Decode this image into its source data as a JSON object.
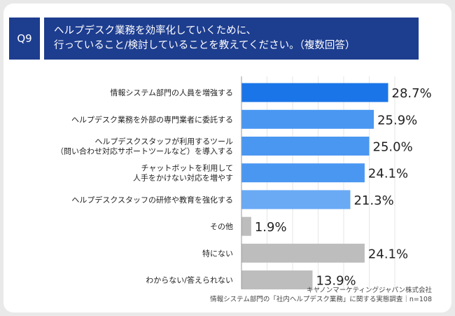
{
  "question": {
    "number": "Q9",
    "title_line1": "ヘルプデスク業務を効率化していくために、",
    "title_line2": "行っていること/検討していることを教えてください。（複数回答）"
  },
  "chart_data": {
    "type": "bar",
    "orientation": "horizontal",
    "categories": [
      [
        "情報システム部門の人員を増強する"
      ],
      [
        "ヘルプデスク業務を外部の専門業者に委託する"
      ],
      [
        "ヘルプデスクスタッフが利用するツール",
        "（問い合わせ対応サポートツールなど）を導入する"
      ],
      [
        "チャットボットを利用して",
        "人手をかけない対応を増やす"
      ],
      [
        "ヘルプデスクスタッフの研修や教育を強化する"
      ],
      [
        "その他"
      ],
      [
        "特にない"
      ],
      [
        "わからない/答えられない"
      ]
    ],
    "values": [
      28.7,
      25.9,
      25.0,
      24.1,
      21.3,
      1.9,
      24.1,
      13.9
    ],
    "value_labels": [
      "28.7%",
      "25.9%",
      "25.0%",
      "24.1%",
      "21.3%",
      "1.9%",
      "24.1%",
      "13.9%"
    ],
    "colors": [
      "#1a75e8",
      "#4a97f2",
      "#4a97f2",
      "#4a97f2",
      "#6aaaf5",
      "#bdbdbd",
      "#bdbdbd",
      "#bdbdbd"
    ],
    "xlim": [
      0,
      30
    ],
    "grid": true
  },
  "footer": {
    "company": "キヤノンマーケティングジャパン株式会社",
    "source": "情報システム部門の「社内ヘルプデスク業務」に関する実態調査｜n=108"
  }
}
